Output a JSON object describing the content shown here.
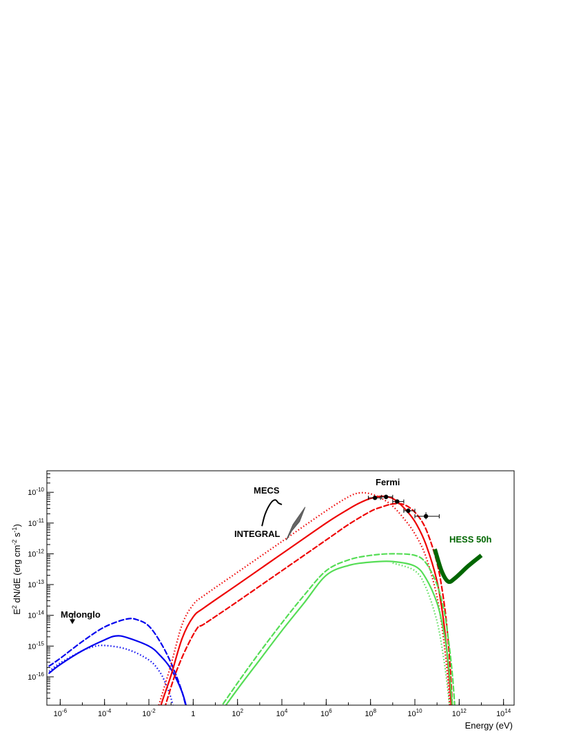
{
  "chart_data": {
    "type": "line",
    "title": "",
    "xlabel": "Energy (eV)",
    "ylabel": "E2 dN/dE (erg cm-2 s-1)",
    "ylabel_parts": {
      "a": "E",
      "a_sup": "2",
      "b": " dN/dE (erg cm",
      "b_sup": "-2",
      "c": " s",
      "c_sup": "-1",
      "d": ")"
    },
    "x_scale": "log",
    "y_scale": "log",
    "xlim": [
      2.5e-07,
      300000000000000.0
    ],
    "ylim": [
      1.2e-17,
      5e-10
    ],
    "grid": false,
    "legend": "none",
    "x_ticks": [
      {
        "exp": -6,
        "base": "10",
        "sup": "-6"
      },
      {
        "exp": -4,
        "base": "10",
        "sup": "-4"
      },
      {
        "exp": -2,
        "base": "10",
        "sup": "-2"
      },
      {
        "exp": 0,
        "base": "1",
        "sup": ""
      },
      {
        "exp": 2,
        "base": "10",
        "sup": "2"
      },
      {
        "exp": 4,
        "base": "10",
        "sup": "4"
      },
      {
        "exp": 6,
        "base": "10",
        "sup": "6"
      },
      {
        "exp": 8,
        "base": "10",
        "sup": "8"
      },
      {
        "exp": 10,
        "base": "10",
        "sup": "10"
      },
      {
        "exp": 12,
        "base": "10",
        "sup": "12"
      },
      {
        "exp": 14,
        "base": "10",
        "sup": "14"
      }
    ],
    "y_ticks": [
      {
        "exp": -16,
        "base": "10",
        "sup": "-16"
      },
      {
        "exp": -15,
        "base": "10",
        "sup": "-15"
      },
      {
        "exp": -14,
        "base": "10",
        "sup": "-14"
      },
      {
        "exp": -13,
        "base": "10",
        "sup": "-13"
      },
      {
        "exp": -12,
        "base": "10",
        "sup": "-12"
      },
      {
        "exp": -11,
        "base": "10",
        "sup": "-11"
      },
      {
        "exp": -10,
        "base": "10",
        "sup": "-10"
      }
    ],
    "series": [
      {
        "key": "sync-dashed",
        "color": "#0000ee",
        "dash": "dashed",
        "width": 2.2,
        "points": [
          [
            -6.5,
            -15.65
          ],
          [
            -6,
            -15.4
          ],
          [
            -5,
            -14.85
          ],
          [
            -4,
            -14.38
          ],
          [
            -3,
            -14.12
          ],
          [
            -2.5,
            -14.15
          ],
          [
            -2,
            -14.35
          ],
          [
            -1.5,
            -14.85
          ],
          [
            -1,
            -15.55
          ],
          [
            -0.5,
            -16.5
          ],
          [
            -0.2,
            -17.4
          ],
          [
            0,
            -18.2
          ]
        ]
      },
      {
        "key": "sync-solid",
        "color": "#0000ee",
        "dash": "solid",
        "width": 2.2,
        "points": [
          [
            -6.5,
            -15.88
          ],
          [
            -6,
            -15.6
          ],
          [
            -5,
            -15.15
          ],
          [
            -4,
            -14.8
          ],
          [
            -3.5,
            -14.67
          ],
          [
            -3,
            -14.72
          ],
          [
            -2,
            -15.0
          ],
          [
            -1.5,
            -15.3
          ],
          [
            -1,
            -15.75
          ],
          [
            -0.5,
            -16.5
          ],
          [
            -0.2,
            -17.3
          ],
          [
            0,
            -18.0
          ]
        ]
      },
      {
        "key": "sync-dotted",
        "color": "#0000ee",
        "dash": "dotted",
        "width": 2.2,
        "points": [
          [
            -6.5,
            -15.82
          ],
          [
            -6,
            -15.55
          ],
          [
            -5,
            -15.15
          ],
          [
            -4.5,
            -15.02
          ],
          [
            -4,
            -14.98
          ],
          [
            -3,
            -15.1
          ],
          [
            -2,
            -15.45
          ],
          [
            -1.5,
            -15.85
          ],
          [
            -1.2,
            -16.3
          ],
          [
            -1,
            -16.7
          ],
          [
            -0.8,
            -17.3
          ],
          [
            -0.6,
            -18.0
          ]
        ]
      },
      {
        "key": "ic-dotted",
        "color": "#ee0000",
        "dash": "dotted",
        "width": 2.2,
        "points": [
          [
            -1.8,
            -17.5
          ],
          [
            -1.5,
            -16.8
          ],
          [
            -1,
            -15.6
          ],
          [
            -0.5,
            -14.3
          ],
          [
            0,
            -13.65
          ],
          [
            0.5,
            -13.35
          ],
          [
            2,
            -12.6
          ],
          [
            4,
            -11.6
          ],
          [
            6,
            -10.6
          ],
          [
            7,
            -10.15
          ],
          [
            7.5,
            -10.02
          ],
          [
            8,
            -10.05
          ],
          [
            8.5,
            -10.2
          ],
          [
            9,
            -10.45
          ],
          [
            9.5,
            -10.85
          ],
          [
            10,
            -11.35
          ],
          [
            10.5,
            -12.1
          ],
          [
            11,
            -13.4
          ],
          [
            11.3,
            -14.8
          ],
          [
            11.5,
            -16.2
          ],
          [
            11.6,
            -17.4
          ]
        ]
      },
      {
        "key": "ic-solid",
        "color": "#ee0000",
        "dash": "solid",
        "width": 2.2,
        "points": [
          [
            -1.7,
            -17.5
          ],
          [
            -1.4,
            -16.8
          ],
          [
            -1,
            -15.95
          ],
          [
            -0.5,
            -14.75
          ],
          [
            0,
            -14.05
          ],
          [
            0.5,
            -13.75
          ],
          [
            2,
            -13.0
          ],
          [
            4,
            -12.0
          ],
          [
            6,
            -11.0
          ],
          [
            7,
            -10.55
          ],
          [
            7.5,
            -10.35
          ],
          [
            8,
            -10.2
          ],
          [
            8.5,
            -10.13
          ],
          [
            9,
            -10.2
          ],
          [
            9.5,
            -10.5
          ],
          [
            10,
            -10.95
          ],
          [
            10.5,
            -11.7
          ],
          [
            11,
            -12.9
          ],
          [
            11.3,
            -14.2
          ],
          [
            11.5,
            -15.6
          ],
          [
            11.65,
            -17.0
          ],
          [
            11.7,
            -17.5
          ]
        ]
      },
      {
        "key": "ic-dashed",
        "color": "#ee0000",
        "dash": "dashed",
        "width": 2.2,
        "points": [
          [
            -1.5,
            -17.5
          ],
          [
            -1.2,
            -16.8
          ],
          [
            -0.8,
            -15.9
          ],
          [
            -0.3,
            -15.05
          ],
          [
            0.2,
            -14.4
          ],
          [
            0.5,
            -14.28
          ],
          [
            2,
            -13.55
          ],
          [
            4,
            -12.55
          ],
          [
            6,
            -11.55
          ],
          [
            7,
            -11.05
          ],
          [
            8,
            -10.62
          ],
          [
            8.5,
            -10.48
          ],
          [
            9,
            -10.38
          ],
          [
            9.5,
            -10.4
          ],
          [
            10,
            -10.65
          ],
          [
            10.5,
            -11.2
          ],
          [
            11,
            -12.3
          ],
          [
            11.3,
            -13.5
          ],
          [
            11.5,
            -14.8
          ],
          [
            11.65,
            -16.4
          ],
          [
            11.72,
            -17.5
          ]
        ]
      },
      {
        "key": "ic2-dashed",
        "color": "#55dd55",
        "dash": "dashed",
        "width": 2.2,
        "points": [
          [
            0.8,
            -17.5
          ],
          [
            1,
            -17.25
          ],
          [
            2,
            -16.2
          ],
          [
            3,
            -15.2
          ],
          [
            4,
            -14.25
          ],
          [
            5,
            -13.35
          ],
          [
            6,
            -12.55
          ],
          [
            7,
            -12.2
          ],
          [
            8,
            -12.05
          ],
          [
            9,
            -12.0
          ],
          [
            10,
            -12.05
          ],
          [
            10.5,
            -12.3
          ],
          [
            11,
            -13.0
          ],
          [
            11.3,
            -13.8
          ],
          [
            11.5,
            -14.7
          ],
          [
            11.7,
            -16.0
          ],
          [
            11.85,
            -17.5
          ]
        ]
      },
      {
        "key": "ic2-solid",
        "color": "#55dd55",
        "dash": "solid",
        "width": 2.2,
        "points": [
          [
            0.9,
            -17.5
          ],
          [
            1.2,
            -17.2
          ],
          [
            2,
            -16.4
          ],
          [
            3,
            -15.45
          ],
          [
            4,
            -14.5
          ],
          [
            5,
            -13.6
          ],
          [
            6,
            -12.7
          ],
          [
            7,
            -12.38
          ],
          [
            8,
            -12.27
          ],
          [
            9,
            -12.25
          ],
          [
            10,
            -12.4
          ],
          [
            10.5,
            -12.8
          ],
          [
            11,
            -13.6
          ],
          [
            11.3,
            -14.5
          ],
          [
            11.5,
            -15.5
          ],
          [
            11.7,
            -17.0
          ],
          [
            11.75,
            -17.5
          ]
        ]
      },
      {
        "key": "ic2-dotted",
        "color": "#55dd55",
        "dash": "dotted",
        "width": 2.2,
        "points": [
          [
            9,
            -12.3
          ],
          [
            10,
            -12.55
          ],
          [
            10.5,
            -13.1
          ],
          [
            11,
            -14.2
          ],
          [
            11.3,
            -15.4
          ],
          [
            11.5,
            -16.5
          ],
          [
            11.6,
            -17.3
          ]
        ]
      }
    ],
    "sensitivity": {
      "label": "HESS 50h",
      "color": "#006600",
      "points": [
        [
          10.9,
          -11.85
        ],
        [
          11.2,
          -12.55
        ],
        [
          11.5,
          -12.9
        ],
        [
          11.8,
          -12.8
        ],
        [
          12.4,
          -12.4
        ],
        [
          13,
          -12.05
        ]
      ]
    },
    "fermi_points": [
      {
        "x": 8.2,
        "y": -10.18,
        "xl": 7.9,
        "xh": 8.45,
        "yl": -10.24,
        "yh": -10.12
      },
      {
        "x": 8.7,
        "y": -10.15,
        "xl": 8.5,
        "xh": 9.0,
        "yl": -10.2,
        "yh": -10.1
      },
      {
        "x": 9.2,
        "y": -10.3,
        "xl": 9.0,
        "xh": 9.5,
        "yl": -10.36,
        "yh": -10.25
      },
      {
        "x": 9.7,
        "y": -10.6,
        "xl": 9.5,
        "xh": 10.0,
        "yl": -10.68,
        "yh": -10.52
      },
      {
        "x": 10.5,
        "y": -10.78,
        "xl": 10.0,
        "xh": 11.1,
        "yl": -10.88,
        "yh": -10.65
      }
    ],
    "molonglo_upper_limit": {
      "x": -5.45,
      "y": -14.15
    },
    "mecs_spectrum": [
      [
        3.1,
        -11.1
      ],
      [
        3.25,
        -10.7
      ],
      [
        3.5,
        -10.35
      ],
      [
        3.7,
        -10.25
      ],
      [
        3.85,
        -10.35
      ],
      [
        4.0,
        -10.4
      ]
    ],
    "integral_bowtie": [
      [
        4.2,
        -11.55
      ],
      [
        4.5,
        -11.05
      ],
      [
        5.05,
        -10.48
      ],
      [
        4.8,
        -10.95
      ],
      [
        4.45,
        -11.25
      ],
      [
        4.25,
        -11.5
      ]
    ],
    "annotations": [
      {
        "key": "molonglo",
        "text": "Molonglo",
        "color": "#000000"
      },
      {
        "key": "mecs",
        "text": "MECS",
        "color": "#000000"
      },
      {
        "key": "integral",
        "text": "INTEGRAL",
        "color": "#000000"
      },
      {
        "key": "fermi",
        "text": "Fermi",
        "color": "#000000"
      },
      {
        "key": "hess",
        "text": "HESS 50h",
        "color": "#006600"
      }
    ]
  }
}
